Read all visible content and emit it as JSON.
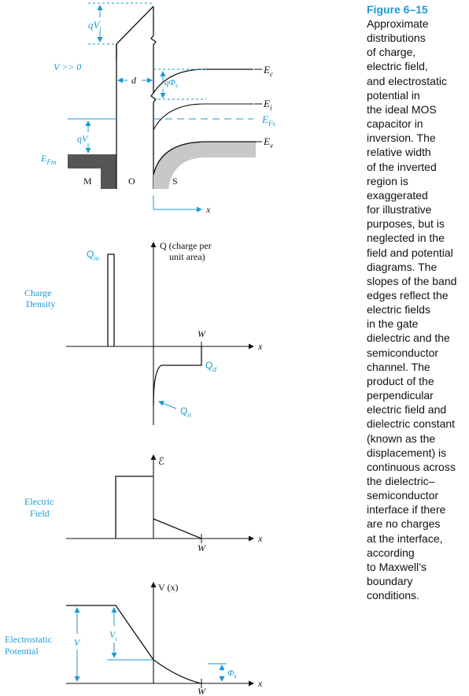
{
  "figure": {
    "title": "Figure 6–15",
    "caption": "Approximate\ndistributions\nof charge,\nelectric field,\nand electrostatic\npotential in\nthe ideal MOS\ncapacitor in\ninversion. The\nrelative width\nof the inverted\nregion is\nexaggerated\nfor illustrative\npurposes, but is\nneglected in the\nfield and potential\ndiagrams. The\nslopes of the band\nedges reflect the\nelectric fields\nin the gate\ndielectric and the\nsemiconductor\nchannel. The\nproduct of the\nperpendicular\nelectric field and\ndielectric constant\n(known as the\ndisplacement) is\ncontinuous across\nthe dielectric–\nsemiconductor\ninterface if there\nare no charges\nat the interface,\naccording\nto Maxwell’s\nboundary\nconditions."
  },
  "band": {
    "qvi": "qV",
    "qvi_sub": "i",
    "bias": "V >> 0",
    "d": "d",
    "qphi": "qΦ",
    "qphi_sub": "s",
    "ec": "E",
    "ec_sub": "c",
    "ei": "E",
    "ei_sub": "i",
    "efs": "E",
    "efs_sub": "Fs",
    "ev": "E",
    "ev_sub": "v",
    "qv": "qV",
    "efm": "E",
    "efm_sub": "Fm",
    "m": "M",
    "o": "O",
    "s": "S",
    "x": "x"
  },
  "charge": {
    "ylabel1": "Q (charge per",
    "ylabel2": "unit area)",
    "qm": "Q",
    "qm_sub": "m",
    "side1": "Charge",
    "side2": "Density",
    "w": "W",
    "x": "x",
    "qd": "Q",
    "qd_sub": "d",
    "qn": "Q",
    "qn_sub": "n"
  },
  "field": {
    "ylabel": "ℰ",
    "side1": "Electric",
    "side2": "Field",
    "w": "W",
    "x": "x"
  },
  "potential": {
    "ylabel": "V (x)",
    "side1": "Electrostatic",
    "side2": "Potential",
    "v": "V",
    "vi": "V",
    "vi_sub": "i",
    "phis": "Φ",
    "phis_sub": "s",
    "w": "W",
    "x": "x"
  },
  "colors": {
    "accent": "#1a9ad6",
    "ink": "#111111",
    "metal": "#555555",
    "semiconductor": "#c8c8c8"
  }
}
